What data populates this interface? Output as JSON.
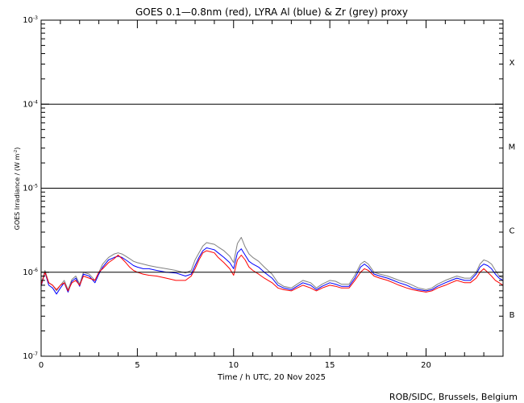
{
  "chart_data": {
    "type": "line",
    "title": "GOES 0.1—0.8nm (red), LYRA Al (blue) & Zr (grey) proxy",
    "xlabel": "Time / h UTC, 20 Nov 2025",
    "ylabel_main": "GOES Irradiance / (W m",
    "ylabel_sup": "-2",
    "ylabel_close": ")",
    "xlim": [
      0,
      24
    ],
    "ylim": [
      1e-07,
      0.001
    ],
    "yscale": "log",
    "x_ticks": [
      0,
      5,
      10,
      15,
      20
    ],
    "x_tick_labels": [
      "0",
      "5",
      "10",
      "15",
      "20"
    ],
    "y_ticks": [
      {
        "value": 0.001,
        "base": "10",
        "exp": "-3"
      },
      {
        "value": 0.0001,
        "base": "10",
        "exp": "-4"
      },
      {
        "value": 1e-05,
        "base": "10",
        "exp": "-5"
      },
      {
        "value": 1e-06,
        "base": "10",
        "exp": "-6"
      },
      {
        "value": 1e-07,
        "base": "10",
        "exp": "-7"
      }
    ],
    "flare_threshold_lines": [
      0.0001,
      1e-05,
      1e-06
    ],
    "flare_classes": [
      {
        "label": "X",
        "y": 0.000316
      },
      {
        "label": "M",
        "y": 3.16e-05
      },
      {
        "label": "C",
        "y": 3.16e-06
      },
      {
        "label": "B",
        "y": 3.16e-07
      }
    ],
    "grid": false,
    "series": [
      {
        "name": "GOES 0.1-0.8nm",
        "color": "#ff0000",
        "x": [
          0.0,
          0.2,
          0.4,
          0.6,
          0.8,
          1.0,
          1.2,
          1.4,
          1.6,
          1.8,
          2.0,
          2.2,
          2.5,
          2.8,
          3.0,
          3.2,
          3.5,
          3.8,
          4.0,
          4.2,
          4.4,
          4.6,
          4.8,
          5.0,
          5.3,
          5.6,
          6.0,
          6.5,
          7.0,
          7.5,
          7.8,
          8.0,
          8.2,
          8.4,
          8.6,
          8.8,
          9.0,
          9.2,
          9.5,
          9.8,
          10.0,
          10.2,
          10.4,
          10.6,
          10.8,
          11.0,
          11.3,
          11.6,
          12.0,
          12.3,
          12.6,
          13.0,
          13.3,
          13.6,
          14.0,
          14.3,
          14.6,
          15.0,
          15.3,
          15.6,
          16.0,
          16.3,
          16.6,
          16.8,
          17.0,
          17.3,
          17.6,
          18.0,
          18.3,
          18.6,
          19.0,
          19.3,
          19.6,
          20.0,
          20.3,
          20.6,
          21.0,
          21.3,
          21.6,
          22.0,
          22.3,
          22.6,
          22.8,
          23.0,
          23.2,
          23.4,
          23.6,
          23.8,
          24.0
        ],
        "y": [
          7e-07,
          1e-06,
          7.5e-07,
          7e-07,
          6.2e-07,
          7e-07,
          7.5e-07,
          6e-07,
          7.5e-07,
          8e-07,
          7e-07,
          9e-07,
          8.5e-07,
          8e-07,
          1e-06,
          1.1e-06,
          1.3e-06,
          1.45e-06,
          1.6e-06,
          1.45e-06,
          1.3e-06,
          1.15e-06,
          1.05e-06,
          1e-06,
          9.5e-07,
          9.2e-07,
          9e-07,
          8.5e-07,
          8e-07,
          8e-07,
          9e-07,
          1.1e-06,
          1.4e-06,
          1.7e-06,
          1.8e-06,
          1.75e-06,
          1.7e-06,
          1.5e-06,
          1.3e-06,
          1.1e-06,
          9.2e-07,
          1.4e-06,
          1.6e-06,
          1.4e-06,
          1.15e-06,
          1.05e-06,
          9.5e-07,
          8.5e-07,
          7.5e-07,
          6.5e-07,
          6.2e-07,
          6e-07,
          6.5e-07,
          7e-07,
          6.5e-07,
          6e-07,
          6.5e-07,
          7e-07,
          6.8e-07,
          6.5e-07,
          6.5e-07,
          8e-07,
          1e-06,
          1.1e-06,
          1.05e-06,
          9e-07,
          8.5e-07,
          8e-07,
          7.5e-07,
          7e-07,
          6.5e-07,
          6.2e-07,
          6e-07,
          5.8e-07,
          6e-07,
          6.5e-07,
          7e-07,
          7.5e-07,
          8e-07,
          7.5e-07,
          7.5e-07,
          8.5e-07,
          1e-06,
          1.1e-06,
          1e-06,
          9e-07,
          8e-07,
          7.5e-07,
          7e-07
        ]
      },
      {
        "name": "LYRA Al",
        "color": "#0000ff",
        "x": [
          0.0,
          0.2,
          0.4,
          0.6,
          0.8,
          1.0,
          1.2,
          1.4,
          1.6,
          1.8,
          2.0,
          2.2,
          2.5,
          2.8,
          3.0,
          3.2,
          3.5,
          3.8,
          4.0,
          4.2,
          4.4,
          4.6,
          4.8,
          5.0,
          5.3,
          5.6,
          6.0,
          6.5,
          7.0,
          7.5,
          7.8,
          8.0,
          8.2,
          8.4,
          8.6,
          8.8,
          9.0,
          9.2,
          9.5,
          9.8,
          10.0,
          10.2,
          10.4,
          10.6,
          10.8,
          11.0,
          11.3,
          11.6,
          12.0,
          12.3,
          12.6,
          13.0,
          13.3,
          13.6,
          14.0,
          14.3,
          14.6,
          15.0,
          15.3,
          15.6,
          16.0,
          16.3,
          16.6,
          16.8,
          17.0,
          17.3,
          17.6,
          18.0,
          18.3,
          18.6,
          19.0,
          19.3,
          19.6,
          20.0,
          20.3,
          20.6,
          21.0,
          21.3,
          21.6,
          22.0,
          22.3,
          22.6,
          22.8,
          23.0,
          23.2,
          23.4,
          23.6,
          23.8,
          24.0
        ],
        "y": [
          6.8e-07,
          1e-06,
          7e-07,
          6.5e-07,
          5.5e-07,
          6.5e-07,
          7.5e-07,
          5.8e-07,
          7.8e-07,
          8.5e-07,
          6.8e-07,
          9.5e-07,
          9e-07,
          7.5e-07,
          9.5e-07,
          1.15e-06,
          1.4e-06,
          1.5e-06,
          1.55e-06,
          1.5e-06,
          1.4e-06,
          1.3e-06,
          1.2e-06,
          1.15e-06,
          1.1e-06,
          1.1e-06,
          1.05e-06,
          1e-06,
          9.8e-07,
          9e-07,
          9.5e-07,
          1.2e-06,
          1.5e-06,
          1.8e-06,
          1.95e-06,
          1.9e-06,
          1.85e-06,
          1.7e-06,
          1.5e-06,
          1.3e-06,
          1.1e-06,
          1.7e-06,
          1.9e-06,
          1.6e-06,
          1.35e-06,
          1.25e-06,
          1.15e-06,
          1e-06,
          8.5e-07,
          7e-07,
          6.5e-07,
          6.2e-07,
          6.8e-07,
          7.5e-07,
          7e-07,
          6.2e-07,
          6.8e-07,
          7.5e-07,
          7.2e-07,
          6.8e-07,
          6.8e-07,
          8.5e-07,
          1.15e-06,
          1.25e-06,
          1.15e-06,
          9.5e-07,
          9e-07,
          8.5e-07,
          8e-07,
          7.5e-07,
          7e-07,
          6.5e-07,
          6.2e-07,
          6e-07,
          6.2e-07,
          6.8e-07,
          7.5e-07,
          8e-07,
          8.5e-07,
          8e-07,
          8e-07,
          9.5e-07,
          1.15e-06,
          1.25e-06,
          1.2e-06,
          1.1e-06,
          9.5e-07,
          8.5e-07,
          8e-07
        ]
      },
      {
        "name": "LYRA Zr",
        "color": "#808080",
        "x": [
          0.0,
          0.2,
          0.4,
          0.6,
          0.8,
          1.0,
          1.2,
          1.4,
          1.6,
          1.8,
          2.0,
          2.2,
          2.5,
          2.8,
          3.0,
          3.2,
          3.5,
          3.8,
          4.0,
          4.2,
          4.4,
          4.6,
          4.8,
          5.0,
          5.3,
          5.6,
          6.0,
          6.5,
          7.0,
          7.5,
          7.8,
          8.0,
          8.2,
          8.4,
          8.6,
          8.8,
          9.0,
          9.2,
          9.5,
          9.8,
          10.0,
          10.2,
          10.4,
          10.6,
          10.8,
          11.0,
          11.3,
          11.6,
          12.0,
          12.3,
          12.6,
          13.0,
          13.3,
          13.6,
          14.0,
          14.3,
          14.6,
          15.0,
          15.3,
          15.6,
          16.0,
          16.3,
          16.6,
          16.8,
          17.0,
          17.3,
          17.6,
          18.0,
          18.3,
          18.6,
          19.0,
          19.3,
          19.6,
          20.0,
          20.3,
          20.6,
          21.0,
          21.3,
          21.6,
          22.0,
          22.3,
          22.6,
          22.8,
          23.0,
          23.2,
          23.4,
          23.6,
          23.8,
          24.0
        ],
        "y": [
          7.2e-07,
          1.05e-06,
          7.5e-07,
          7e-07,
          6e-07,
          7e-07,
          8e-07,
          6.2e-07,
          8.2e-07,
          9e-07,
          7.2e-07,
          1e-06,
          9.5e-07,
          8e-07,
          1e-06,
          1.25e-06,
          1.5e-06,
          1.65e-06,
          1.7e-06,
          1.65e-06,
          1.55e-06,
          1.45e-06,
          1.35e-06,
          1.3e-06,
          1.25e-06,
          1.2e-06,
          1.15e-06,
          1.1e-06,
          1.05e-06,
          9.8e-07,
          1.05e-06,
          1.4e-06,
          1.7e-06,
          2.05e-06,
          2.25e-06,
          2.2e-06,
          2.15e-06,
          2e-06,
          1.8e-06,
          1.55e-06,
          1.3e-06,
          2.2e-06,
          2.6e-06,
          2e-06,
          1.65e-06,
          1.5e-06,
          1.35e-06,
          1.15e-06,
          9.5e-07,
          7.5e-07,
          6.8e-07,
          6.5e-07,
          7.2e-07,
          8e-07,
          7.5e-07,
          6.5e-07,
          7.2e-07,
          8e-07,
          7.8e-07,
          7.2e-07,
          7.2e-07,
          9.2e-07,
          1.25e-06,
          1.35e-06,
          1.25e-06,
          1e-06,
          9.5e-07,
          9e-07,
          8.5e-07,
          8e-07,
          7.5e-07,
          7e-07,
          6.5e-07,
          6.2e-07,
          6.5e-07,
          7.2e-07,
          8e-07,
          8.5e-07,
          9e-07,
          8.5e-07,
          8.5e-07,
          1e-06,
          1.25e-06,
          1.4e-06,
          1.35e-06,
          1.25e-06,
          1.05e-06,
          9e-07,
          8.5e-07
        ]
      }
    ]
  },
  "credit": "ROB/SIDC, Brussels, Belgium"
}
